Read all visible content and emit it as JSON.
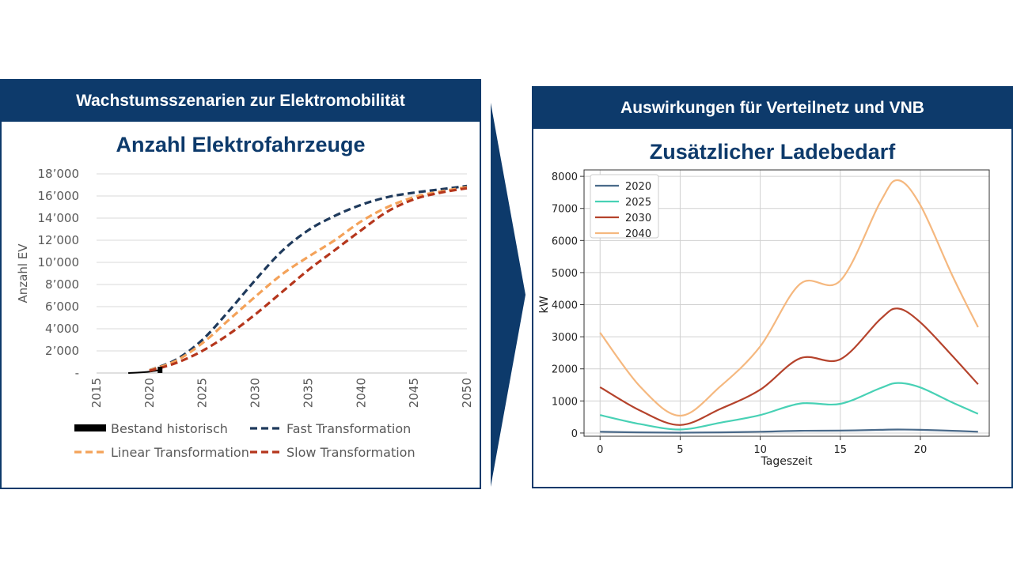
{
  "colors": {
    "header_bg": "#0d3a6b",
    "fast": "#1f3a5c",
    "linear": "#f4a259",
    "slow": "#b5361c",
    "historic": "#000000",
    "s2020": "#4a6a8a",
    "s2025": "#48d1b5",
    "s2030": "#b5432c",
    "s2040": "#f5b87f"
  },
  "left": {
    "header": "Wachstumsszenarien zur Elektromobilität",
    "chart_title": "Anzahl Elektrofahrzeuge"
  },
  "right": {
    "header": "Auswirkungen für Verteilnetz und VNB",
    "chart_title": "Zusätzlicher Ladebedarf"
  },
  "arrow_icon": "chevron-right-icon",
  "chart_data": [
    {
      "type": "line",
      "title": "Anzahl Elektrofahrzeuge",
      "xlabel": "",
      "ylabel": "Anzahl EV",
      "xlim": [
        2015,
        2050
      ],
      "ylim": [
        0,
        18000
      ],
      "x_ticks": [
        2015,
        2020,
        2025,
        2030,
        2035,
        2040,
        2045,
        2050
      ],
      "y_ticks": [
        0,
        2000,
        4000,
        6000,
        8000,
        10000,
        12000,
        14000,
        16000,
        18000
      ],
      "y_tick_labels": [
        "-",
        "2’000",
        "4’000",
        "6’000",
        "8’000",
        "10’000",
        "12’000",
        "14’000",
        "16’000",
        "18’000"
      ],
      "grid": "horizontal",
      "legend": "bottom",
      "series": [
        {
          "name": "Bestand historisch",
          "style": "solid",
          "color_key": "historic",
          "x": [
            2018,
            2019,
            2020,
            2021
          ],
          "y": [
            0,
            40,
            120,
            280
          ]
        },
        {
          "name": "Fast Transformation",
          "style": "dashed",
          "color_key": "fast",
          "x": [
            2020,
            2022.5,
            2025,
            2027.5,
            2030,
            2032.5,
            2035,
            2037.5,
            2040,
            2042.5,
            2045,
            2047.5,
            2050
          ],
          "y": [
            250,
            1200,
            3000,
            5600,
            8400,
            11000,
            12900,
            14200,
            15200,
            15900,
            16300,
            16600,
            16900
          ]
        },
        {
          "name": "Linear Transformation",
          "style": "dashed",
          "color_key": "linear",
          "x": [
            2020,
            2022.5,
            2025,
            2027.5,
            2030,
            2032.5,
            2035,
            2037.5,
            2040,
            2042.5,
            2045,
            2047.5,
            2050
          ],
          "y": [
            250,
            1100,
            2700,
            4800,
            6900,
            8900,
            10500,
            12000,
            13700,
            15000,
            15900,
            16400,
            16800
          ]
        },
        {
          "name": "Slow Transformation",
          "style": "dashed",
          "color_key": "slow",
          "x": [
            2020,
            2022.5,
            2025,
            2027.5,
            2030,
            2032.5,
            2035,
            2037.5,
            2040,
            2042.5,
            2045,
            2047.5,
            2050
          ],
          "y": [
            200,
            900,
            2000,
            3500,
            5300,
            7300,
            9300,
            11100,
            12900,
            14600,
            15700,
            16300,
            16700
          ]
        }
      ]
    },
    {
      "type": "line",
      "title": "Zusätzlicher Ladebedarf",
      "xlabel": "Tageszeit",
      "ylabel": "kW",
      "xlim": [
        -1,
        24.3
      ],
      "ylim": [
        -100,
        8200
      ],
      "x_ticks": [
        0,
        5,
        10,
        15,
        20
      ],
      "y_ticks": [
        0,
        1000,
        2000,
        3000,
        4000,
        5000,
        6000,
        7000,
        8000
      ],
      "grid": "both",
      "legend": "top-left",
      "series": [
        {
          "name": "2020",
          "color_key": "s2020",
          "x": [
            0,
            2.5,
            5,
            7.5,
            10,
            12.5,
            15,
            17.5,
            18.6,
            20,
            22,
            23.6
          ],
          "y": [
            40,
            20,
            10,
            20,
            40,
            70,
            75,
            100,
            110,
            100,
            70,
            40
          ]
        },
        {
          "name": "2025",
          "color_key": "s2025",
          "x": [
            0,
            2.5,
            5,
            7.5,
            10,
            12.5,
            15,
            17.5,
            18.6,
            20,
            22,
            23.6
          ],
          "y": [
            560,
            280,
            110,
            320,
            560,
            920,
            910,
            1400,
            1560,
            1420,
            950,
            600
          ]
        },
        {
          "name": "2030",
          "color_key": "s2030",
          "x": [
            0,
            2.5,
            5,
            7.5,
            10,
            12.5,
            15,
            17.5,
            18.6,
            20,
            22,
            23.6
          ],
          "y": [
            1430,
            700,
            250,
            750,
            1350,
            2330,
            2300,
            3550,
            3880,
            3450,
            2400,
            1520
          ]
        },
        {
          "name": "2040",
          "color_key": "s2040",
          "x": [
            0,
            2.5,
            5,
            7.5,
            10,
            12.5,
            15,
            17.5,
            18.6,
            20,
            22,
            23.6
          ],
          "y": [
            3130,
            1450,
            540,
            1450,
            2700,
            4650,
            4750,
            7200,
            7880,
            7100,
            4900,
            3300
          ]
        }
      ]
    }
  ]
}
